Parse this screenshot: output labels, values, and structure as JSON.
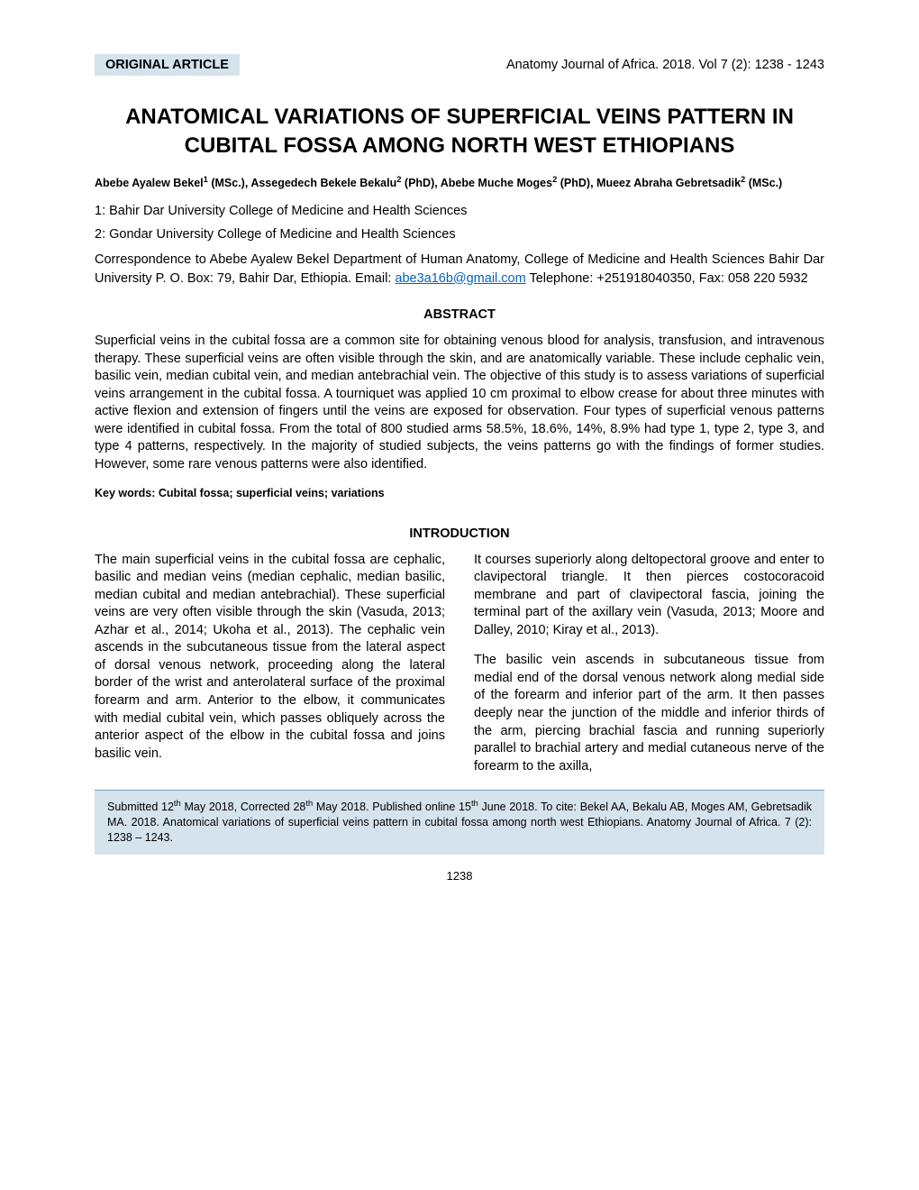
{
  "header": {
    "badge": "ORIGINAL ARTICLE",
    "journal": "Anatomy Journal of Africa. 2018. Vol 7 (2): 1238 - 1243"
  },
  "title": "ANATOMICAL VARIATIONS OF SUPERFICIAL VEINS PATTERN IN CUBITAL FOSSA AMONG NORTH WEST ETHIOPIANS",
  "authors_html": "Abebe Ayalew Bekel<sup>1</sup> (MSc.), Assegedech Bekele Bekalu<sup>2</sup> (PhD), Abebe Muche Moges<sup>2</sup> (PhD), Mueez Abraha Gebretsadik<sup>2</sup> (MSc.)",
  "affiliations": [
    "1: Bahir Dar University College of Medicine and Health Sciences",
    "2: Gondar University College of Medicine and Health Sciences"
  ],
  "correspondence": {
    "prefix": "Correspondence to Abebe Ayalew Bekel Department of Human Anatomy, College of Medicine and Health Sciences Bahir Dar University P. O. Box: 79, Bahir Dar, Ethiopia. Email: ",
    "email": "abe3a16b@gmail.com",
    "suffix": " Telephone: +251918040350, Fax: 058 220 5932"
  },
  "abstract": {
    "heading": "ABSTRACT",
    "text": "Superficial veins in the cubital fossa are a common site for obtaining venous blood for analysis, transfusion, and intravenous therapy. These superficial veins are often visible through the skin, and are anatomically variable. These include cephalic vein, basilic vein, median cubital vein, and median antebrachial vein. The objective of this study is to assess variations of superficial veins arrangement in the cubital fossa. A tourniquet was applied 10 cm proximal to elbow crease for about three minutes with active flexion and extension of fingers until the veins are exposed for observation. Four types of superficial venous patterns were identified in cubital fossa. From the total of 800 studied arms 58.5%, 18.6%, 14%, 8.9% had type 1, type 2, type 3, and type 4 patterns, respectively. In the majority of studied subjects, the veins patterns go with the findings of former studies. However, some rare venous patterns were also identified."
  },
  "keywords": "Key words: Cubital fossa; superficial veins; variations",
  "introduction": {
    "heading": "INTRODUCTION",
    "col1": "The main superficial veins in the cubital fossa are cephalic, basilic and median veins (median cephalic, median basilic, median cubital and median antebrachial). These superficial veins are very often visible through the skin (Vasuda, 2013; Azhar et al., 2014; Ukoha et al., 2013). The cephalic vein ascends in the subcutaneous tissue from the lateral aspect of dorsal venous network, proceeding along the lateral border of the wrist and anterolateral surface of the proximal forearm and arm. Anterior to the elbow, it communicates with medial cubital vein, which passes obliquely across the anterior aspect of the elbow in the cubital fossa and joins basilic vein.",
    "col2_p1": "It courses superiorly along deltopectoral groove and enter to clavipectoral triangle. It then pierces costocoracoid membrane and part of clavipectoral fascia, joining the terminal part of the axillary vein (Vasuda, 2013; Moore and Dalley, 2010; Kiray et al., 2013).",
    "col2_p2": "The basilic vein ascends in subcutaneous tissue from medial end of the dorsal venous network along medial side of the forearm and inferior part of the arm. It then passes deeply near the junction of the middle and inferior thirds of the arm, piercing brachial fascia and running superiorly parallel to brachial artery and medial cutaneous nerve of the forearm to the axilla,"
  },
  "citation_html": "Submitted 12<sup>th</sup> May 2018, Corrected 28<sup>th</sup> May 2018. Published online 15<sup>th</sup> June 2018. To cite: Bekel AA, Bekalu AB, Moges AM, Gebretsadik MA. 2018. Anatomical variations of superficial veins pattern in cubital fossa among north west Ethiopians. Anatomy Journal of Africa. 7 (2): 1238 – 1243.",
  "page_number": "1238",
  "colors": {
    "badge_bg": "#d5e3ed",
    "link": "#0563c1",
    "text": "#000000",
    "bg": "#ffffff"
  }
}
